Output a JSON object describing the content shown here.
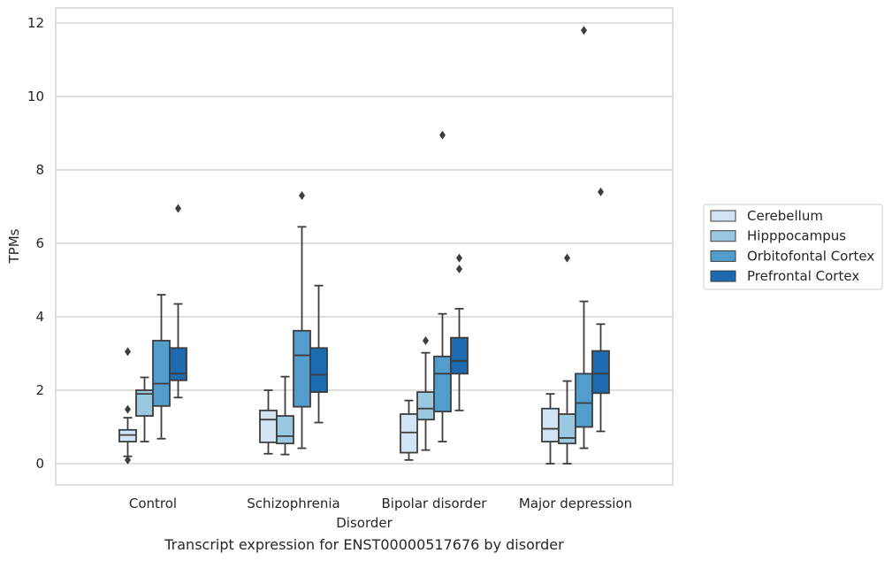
{
  "chart_data": {
    "type": "box",
    "title": "",
    "caption": "Transcript expression for ENST00000517676 by disorder",
    "xlabel": "Disorder",
    "ylabel": "TPMs",
    "ylim": [
      -0.55,
      12.4
    ],
    "yticks": [
      0,
      2,
      4,
      6,
      8,
      10,
      12
    ],
    "grid": "horizontal",
    "legend_position": "right",
    "categories": [
      "Control",
      "Schizophrenia",
      "Bipolar disorder",
      "Major depression"
    ],
    "series": [
      {
        "name": "Cerebellum",
        "color": "#d2e3f3",
        "boxes": [
          {
            "whisker_low": 0.2,
            "q1": 0.6,
            "median": 0.78,
            "q3": 0.92,
            "whisker_high": 1.25,
            "outliers": [
              3.05,
              1.48,
              0.1
            ]
          },
          {
            "whisker_low": 0.27,
            "q1": 0.58,
            "median": 1.2,
            "q3": 1.45,
            "whisker_high": 2.0,
            "outliers": []
          },
          {
            "whisker_low": 0.1,
            "q1": 0.3,
            "median": 0.85,
            "q3": 1.35,
            "whisker_high": 1.72,
            "outliers": []
          },
          {
            "whisker_low": 0.0,
            "q1": 0.6,
            "median": 0.95,
            "q3": 1.5,
            "whisker_high": 1.9,
            "outliers": []
          }
        ]
      },
      {
        "name": "Hipppocampus",
        "color": "#9ac8e0",
        "boxes": [
          {
            "whisker_low": 0.6,
            "q1": 1.3,
            "median": 1.9,
            "q3": 2.0,
            "whisker_high": 2.35,
            "outliers": []
          },
          {
            "whisker_low": 0.25,
            "q1": 0.55,
            "median": 0.75,
            "q3": 1.3,
            "whisker_high": 2.37,
            "outliers": []
          },
          {
            "whisker_low": 0.37,
            "q1": 1.2,
            "median": 1.5,
            "q3": 1.95,
            "whisker_high": 3.02,
            "outliers": [
              3.35
            ]
          },
          {
            "whisker_low": 0.0,
            "q1": 0.55,
            "median": 0.7,
            "q3": 1.35,
            "whisker_high": 2.25,
            "outliers": [
              5.6
            ]
          }
        ]
      },
      {
        "name": "Orbitofontal Cortex",
        "color": "#529dcc",
        "boxes": [
          {
            "whisker_low": 0.68,
            "q1": 1.57,
            "median": 2.18,
            "q3": 3.35,
            "whisker_high": 4.6,
            "outliers": []
          },
          {
            "whisker_low": 0.42,
            "q1": 1.55,
            "median": 2.95,
            "q3": 3.62,
            "whisker_high": 6.45,
            "outliers": [
              7.3
            ]
          },
          {
            "whisker_low": 0.6,
            "q1": 1.42,
            "median": 2.45,
            "q3": 2.92,
            "whisker_high": 4.08,
            "outliers": [
              8.95
            ]
          },
          {
            "whisker_low": 0.42,
            "q1": 1.0,
            "median": 1.65,
            "q3": 2.45,
            "whisker_high": 4.42,
            "outliers": [
              11.8
            ]
          }
        ]
      },
      {
        "name": "Prefrontal Cortex",
        "color": "#1c6aaf",
        "boxes": [
          {
            "whisker_low": 1.8,
            "q1": 2.27,
            "median": 2.45,
            "q3": 3.15,
            "whisker_high": 4.35,
            "outliers": [
              6.95
            ]
          },
          {
            "whisker_low": 1.12,
            "q1": 1.95,
            "median": 2.42,
            "q3": 3.15,
            "whisker_high": 4.85,
            "outliers": []
          },
          {
            "whisker_low": 1.45,
            "q1": 2.45,
            "median": 2.8,
            "q3": 3.43,
            "whisker_high": 4.22,
            "outliers": [
              5.6,
              5.3
            ]
          },
          {
            "whisker_low": 0.88,
            "q1": 1.92,
            "median": 2.45,
            "q3": 3.07,
            "whisker_high": 3.8,
            "outliers": [
              7.4
            ]
          }
        ]
      }
    ]
  }
}
